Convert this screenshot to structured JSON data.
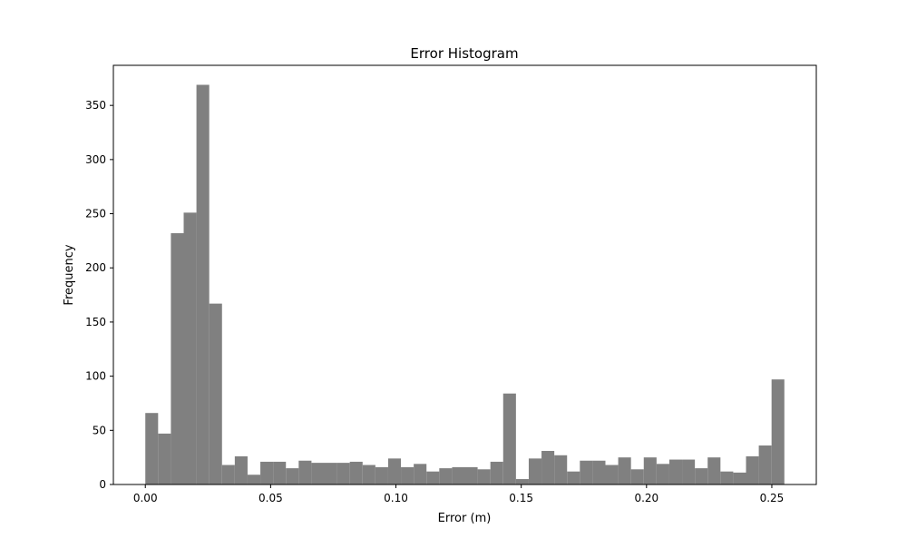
{
  "chart_data": {
    "type": "bar",
    "title": "Error Histogram",
    "xlabel": "Error (m)",
    "ylabel": "Frequency",
    "xlim": [
      -0.01275,
      0.26775
    ],
    "ylim": [
      0,
      387
    ],
    "grid": false,
    "bar_color": "#808080",
    "bin_width": 0.0051,
    "bin_start": 0.0,
    "values": [
      66,
      47,
      232,
      251,
      369,
      167,
      18,
      26,
      9,
      21,
      21,
      15,
      22,
      20,
      20,
      20,
      21,
      18,
      16,
      24,
      16,
      19,
      12,
      15,
      16,
      16,
      14,
      21,
      84,
      5,
      24,
      31,
      27,
      12,
      22,
      22,
      18,
      25,
      14,
      25,
      19,
      23,
      23,
      15,
      25,
      12,
      11,
      26,
      36,
      97
    ],
    "xticks": [
      0.0,
      0.05,
      0.1,
      0.15,
      0.2,
      0.25
    ],
    "xtick_labels": [
      "0.00",
      "0.05",
      "0.10",
      "0.15",
      "0.20",
      "0.25"
    ],
    "yticks": [
      0,
      50,
      100,
      150,
      200,
      250,
      300,
      350
    ],
    "ytick_labels": [
      "0",
      "50",
      "100",
      "150",
      "200",
      "250",
      "300",
      "350"
    ]
  }
}
